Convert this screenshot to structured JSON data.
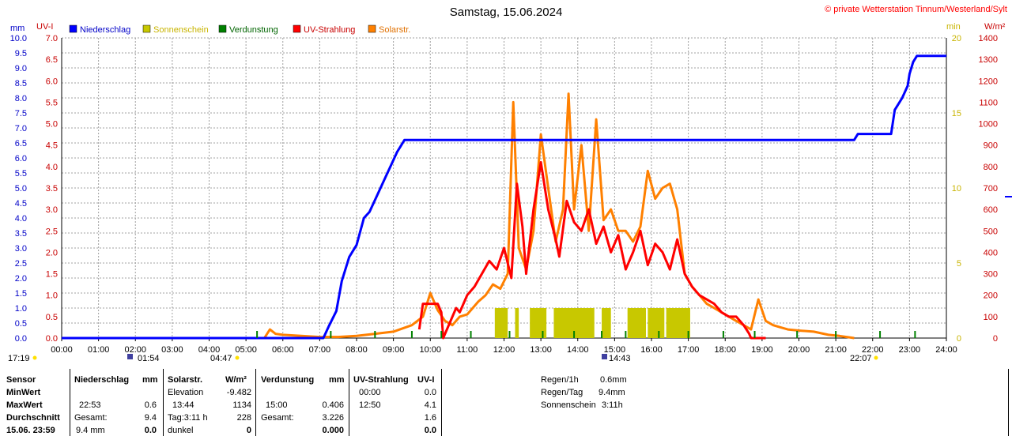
{
  "header": {
    "title": "Samstag, 15.06.2024",
    "copyright": "© private Wetterstation Tinnum/Westerland/Sylt"
  },
  "axes": {
    "left_unit_mm": "mm",
    "left_unit_uv": "UV-I",
    "right_unit_min": "min",
    "right_unit_wm2": "W/m²"
  },
  "legend": [
    {
      "label": "Niederschlag",
      "color": "#0000ff",
      "text_color": "#0000c8"
    },
    {
      "label": "Sonnenschein",
      "color": "#c8c800",
      "text_color": "#c8b400"
    },
    {
      "label": "Verdunstung",
      "color": "#008000",
      "text_color": "#006400"
    },
    {
      "label": "UV-Strahlung",
      "color": "#ff0000",
      "text_color": "#c80000"
    },
    {
      "label": "Solarstr.",
      "color": "#ff8000",
      "text_color": "#e07000"
    }
  ],
  "markers": {
    "sunrise": "04:47",
    "sunset": "22:07",
    "elev_low": "01:54",
    "elev_high": "14:43",
    "last_update": "17:19"
  },
  "chart_data": {
    "type": "line",
    "title": "Samstag, 15.06.2024",
    "x_ticks": [
      "00:00",
      "01:00",
      "02:00",
      "03:00",
      "04:00",
      "05:00",
      "06:00",
      "07:00",
      "08:00",
      "09:00",
      "10:00",
      "11:00",
      "12:00",
      "13:00",
      "14:00",
      "15:00",
      "16:00",
      "17:00",
      "18:00",
      "19:00",
      "20:00",
      "21:00",
      "22:00",
      "23:00",
      "24:00"
    ],
    "xlim": [
      0,
      24
    ],
    "axis_mm": {
      "label": "mm",
      "ylim": [
        0,
        10
      ],
      "ticks": [
        "0.0",
        "0.5",
        "1.0",
        "1.5",
        "2.0",
        "2.5",
        "3.0",
        "3.5",
        "4.0",
        "4.5",
        "5.0",
        "5.5",
        "6.0",
        "6.5",
        "7.0",
        "7.5",
        "8.0",
        "8.5",
        "9.0",
        "9.5",
        "10.0"
      ]
    },
    "axis_uv": {
      "label": "UV-I",
      "ylim": [
        0,
        7
      ],
      "ticks": [
        "0.0",
        "0.5",
        "1.0",
        "1.5",
        "2.0",
        "2.5",
        "3.0",
        "3.5",
        "4.0",
        "4.5",
        "5.0",
        "5.5",
        "6.0",
        "6.5",
        "7.0"
      ]
    },
    "axis_min": {
      "label": "min",
      "ylim": [
        0,
        20
      ],
      "ticks": [
        "0",
        "5",
        "10",
        "15",
        "20"
      ]
    },
    "axis_wm2": {
      "label": "W/m²",
      "ylim": [
        0,
        1400
      ],
      "ticks": [
        "0",
        "100",
        "200",
        "300",
        "400",
        "500",
        "600",
        "700",
        "800",
        "900",
        "1000",
        "1100",
        "1200",
        "1300",
        "1400"
      ]
    },
    "series": [
      {
        "name": "Niederschlag",
        "axis": "mm",
        "color": "#0000ff",
        "x": [
          0,
          7.1,
          7.25,
          7.45,
          7.6,
          7.8,
          8.0,
          8.2,
          8.35,
          8.5,
          8.8,
          8.95,
          9.1,
          9.3,
          21.5,
          21.6,
          22.5,
          22.6,
          22.8,
          22.95,
          23.0,
          23.1,
          23.2,
          23.4,
          24.0
        ],
        "y": [
          0,
          0,
          0.4,
          0.9,
          1.9,
          2.7,
          3.1,
          4.0,
          4.2,
          4.6,
          5.4,
          5.8,
          6.2,
          6.6,
          6.6,
          6.8,
          6.8,
          7.6,
          8.0,
          8.4,
          8.8,
          9.2,
          9.4,
          9.4,
          9.4
        ]
      },
      {
        "name": "UV-Strahlung",
        "axis": "uv",
        "color": "#ff0000",
        "x": [
          9.7,
          9.8,
          10.2,
          10.3,
          10.35,
          10.7,
          10.8,
          11.0,
          11.2,
          11.4,
          11.6,
          11.8,
          12.0,
          12.2,
          12.35,
          12.5,
          12.6,
          12.8,
          13.0,
          13.2,
          13.4,
          13.5,
          13.7,
          13.9,
          14.1,
          14.3,
          14.5,
          14.7,
          14.9,
          15.1,
          15.3,
          15.5,
          15.7,
          15.9,
          16.1,
          16.3,
          16.5,
          16.7,
          16.9,
          17.1,
          17.3,
          17.5,
          17.7,
          17.9,
          18.1,
          18.3,
          18.5,
          18.65,
          18.7,
          19.0,
          19.1
        ],
        "y": [
          0.2,
          0.8,
          0.8,
          0.6,
          0,
          0.7,
          0.6,
          1.0,
          1.2,
          1.5,
          1.8,
          1.6,
          2.1,
          1.4,
          3.6,
          2.6,
          1.5,
          3.0,
          4.1,
          3.0,
          2.3,
          1.9,
          3.2,
          2.7,
          2.5,
          3.0,
          2.2,
          2.6,
          2.0,
          2.4,
          1.6,
          2.0,
          2.5,
          1.7,
          2.2,
          2.0,
          1.6,
          2.3,
          1.5,
          1.2,
          1.0,
          0.9,
          0.8,
          0.6,
          0.5,
          0.5,
          0.3,
          0.1,
          0,
          0,
          0
        ]
      },
      {
        "name": "Solarstr.",
        "axis": "wm2",
        "color": "#ff8000",
        "x": [
          5.5,
          5.65,
          5.8,
          6.0,
          6.5,
          7.0,
          7.5,
          8.0,
          8.5,
          9.0,
          9.5,
          9.8,
          10.0,
          10.2,
          10.4,
          10.6,
          10.8,
          11.0,
          11.3,
          11.5,
          11.7,
          11.9,
          12.1,
          12.25,
          12.4,
          12.6,
          12.8,
          13.0,
          13.2,
          13.4,
          13.6,
          13.75,
          13.9,
          14.1,
          14.3,
          14.5,
          14.7,
          14.9,
          15.1,
          15.3,
          15.5,
          15.7,
          15.9,
          16.1,
          16.3,
          16.5,
          16.7,
          16.9,
          17.1,
          17.3,
          17.5,
          17.7,
          17.9,
          18.1,
          18.3,
          18.5,
          18.7,
          18.9,
          19.1,
          19.3,
          19.5,
          19.7,
          20.0,
          20.4,
          20.8,
          21.1,
          21.5
        ],
        "y": [
          0,
          40,
          20,
          15,
          10,
          5,
          5,
          10,
          20,
          30,
          60,
          100,
          210,
          130,
          80,
          60,
          100,
          110,
          170,
          200,
          250,
          230,
          300,
          1100,
          420,
          320,
          500,
          950,
          700,
          450,
          600,
          1140,
          600,
          900,
          500,
          1020,
          550,
          600,
          500,
          500,
          450,
          520,
          780,
          650,
          700,
          720,
          600,
          300,
          240,
          200,
          160,
          140,
          120,
          100,
          80,
          60,
          40,
          180,
          80,
          60,
          50,
          40,
          35,
          30,
          15,
          10,
          0
        ]
      }
    ],
    "bars": {
      "name": "Sonnenschein",
      "axis": "min",
      "color": "#c8c800",
      "value": 2,
      "intervals": [
        [
          11.75,
          12.1
        ],
        [
          12.3,
          12.4
        ],
        [
          12.7,
          13.15
        ],
        [
          13.35,
          14.45
        ],
        [
          14.65,
          14.9
        ],
        [
          15.35,
          15.85
        ],
        [
          15.9,
          16.35
        ],
        [
          16.4,
          17.05
        ]
      ]
    },
    "verdunstung_marks": [
      5.3,
      7.3,
      8.5,
      9.5,
      10.3,
      11.1,
      12.15,
      13.05,
      13.9,
      14.65,
      15.3,
      16.2,
      17.0,
      17.95,
      18.8,
      19.95,
      21.0,
      22.2,
      23.15
    ]
  },
  "stats": {
    "row_labels": [
      "Sensor",
      "MinWert",
      "MaxWert",
      "Durchschnitt",
      "15.06. 23:59"
    ],
    "niederschlag": {
      "header": "Niederschlag",
      "unit": "mm",
      "max_time": "22:53",
      "max_val": "0.6",
      "avg_label": "Gesamt:",
      "avg_val": "9.4",
      "last_label": "9.4 mm",
      "last_val": "0.0"
    },
    "solar": {
      "header": "Solarstr.",
      "unit": "W/m²",
      "min_label": "Elevation",
      "min_val": "-9.482",
      "max_time": "13:44",
      "max_val": "1134",
      "avg_label": "Tag:3:11 h",
      "avg_val": "228",
      "last_label": "dunkel",
      "last_val": "0"
    },
    "verdunstung": {
      "header": "Verdunstung",
      "unit": "mm",
      "max_time": "15:00",
      "max_val": "0.406",
      "avg_label": "Gesamt:",
      "avg_val": "3.226",
      "last_val": "0.000"
    },
    "uv": {
      "header": "UV-Strahlung",
      "unit": "UV-I",
      "min_time": "00:00",
      "min_val": "0.0",
      "max_time": "12:50",
      "max_val": "4.1",
      "avg_val": "1.6",
      "last_val": "0.0"
    },
    "summary": [
      {
        "label": "Regen/1h",
        "value": "0.6mm"
      },
      {
        "label": "Regen/Tag",
        "value": "9.4mm"
      },
      {
        "label": "Sonnenschein",
        "value": "3:11h"
      }
    ]
  }
}
